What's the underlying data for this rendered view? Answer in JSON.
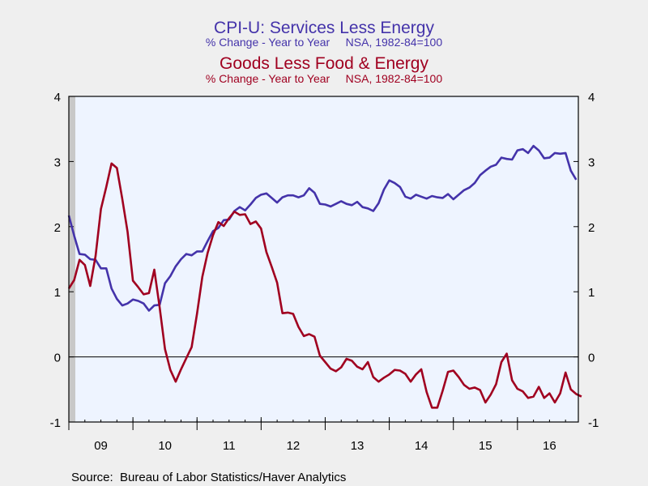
{
  "chart_data": {
    "type": "line",
    "titles": [
      {
        "text": "CPI-U: Services Less Energy",
        "color": "#4433aa"
      },
      {
        "text": "% Change - Year to Year     NSA, 1982-84=100",
        "color": "#4433aa"
      },
      {
        "text": "Goods Less Food & Energy",
        "color": "#a00020"
      },
      {
        "text": "% Change - Year to Year     NSA, 1982-84=100",
        "color": "#a00020"
      }
    ],
    "source": "Source:  Bureau of Labor Statistics/Haver Analytics",
    "ylim": [
      -1,
      4
    ],
    "yticks": [
      "-1",
      "0",
      "1",
      "2",
      "3",
      "4"
    ],
    "xlim": [
      2009.0,
      2016.95
    ],
    "xticks": [
      {
        "label": "09",
        "x": 2009.5
      },
      {
        "label": "10",
        "x": 2010.5
      },
      {
        "label": "11",
        "x": 2011.5
      },
      {
        "label": "12",
        "x": 2012.5
      },
      {
        "label": "13",
        "x": 2013.5
      },
      {
        "label": "14",
        "x": 2014.5
      },
      {
        "label": "15",
        "x": 2015.5
      },
      {
        "label": "16",
        "x": 2016.5
      }
    ],
    "zero_line": 0,
    "series": [
      {
        "color": "#4433aa",
        "start": 2009.0,
        "step": 0.08333,
        "values": [
          2.17,
          1.86,
          1.58,
          1.57,
          1.5,
          1.49,
          1.36,
          1.36,
          1.05,
          0.89,
          0.79,
          0.82,
          0.88,
          0.86,
          0.82,
          0.71,
          0.79,
          0.8,
          1.13,
          1.24,
          1.39,
          1.5,
          1.58,
          1.56,
          1.62,
          1.62,
          1.78,
          1.93,
          1.98,
          2.1,
          2.11,
          2.24,
          2.3,
          2.25,
          2.34,
          2.44,
          2.49,
          2.51,
          2.44,
          2.37,
          2.45,
          2.48,
          2.48,
          2.45,
          2.48,
          2.59,
          2.52,
          2.35,
          2.34,
          2.31,
          2.35,
          2.39,
          2.35,
          2.33,
          2.38,
          2.3,
          2.28,
          2.24,
          2.36,
          2.57,
          2.71,
          2.67,
          2.61,
          2.46,
          2.43,
          2.49,
          2.46,
          2.43,
          2.47,
          2.45,
          2.44,
          2.5,
          2.42,
          2.49,
          2.56,
          2.6,
          2.67,
          2.79,
          2.86,
          2.92,
          2.95,
          3.06,
          3.04,
          3.03,
          3.17,
          3.19,
          3.13,
          3.24,
          3.17,
          3.05,
          3.06,
          3.13,
          3.12,
          3.13,
          2.86,
          2.72
        ]
      },
      {
        "color": "#a00020",
        "start": 2009.0,
        "step": 0.08333,
        "values": [
          1.05,
          1.18,
          1.49,
          1.41,
          1.09,
          1.55,
          2.27,
          2.61,
          2.97,
          2.9,
          2.43,
          1.92,
          1.17,
          1.07,
          0.96,
          0.98,
          1.34,
          0.76,
          0.12,
          -0.2,
          -0.38,
          -0.19,
          -0.02,
          0.15,
          0.66,
          1.23,
          1.6,
          1.87,
          2.07,
          2.01,
          2.13,
          2.23,
          2.18,
          2.19,
          2.04,
          2.08,
          1.97,
          1.61,
          1.38,
          1.14,
          0.67,
          0.68,
          0.66,
          0.46,
          0.32,
          0.35,
          0.31,
          0.02,
          -0.08,
          -0.18,
          -0.22,
          -0.16,
          -0.03,
          -0.06,
          -0.15,
          -0.19,
          -0.08,
          -0.31,
          -0.38,
          -0.32,
          -0.27,
          -0.2,
          -0.21,
          -0.26,
          -0.38,
          -0.27,
          -0.19,
          -0.54,
          -0.78,
          -0.78,
          -0.52,
          -0.23,
          -0.21,
          -0.31,
          -0.43,
          -0.49,
          -0.47,
          -0.51,
          -0.7,
          -0.58,
          -0.42,
          -0.08,
          0.05,
          -0.36,
          -0.49,
          -0.53,
          -0.63,
          -0.61,
          -0.46,
          -0.63,
          -0.56,
          -0.7,
          -0.56,
          -0.24,
          -0.5,
          -0.57,
          -0.61
        ]
      }
    ]
  }
}
